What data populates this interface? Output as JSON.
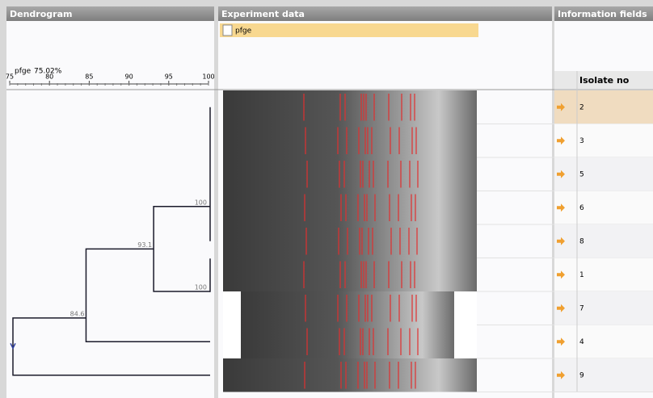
{
  "dendrogram": {
    "title": "Dendrogram",
    "experiment": "pfge",
    "cutoff": "75.02%",
    "scale": [
      75,
      80,
      85,
      90,
      95,
      100
    ],
    "nodes": [
      {
        "similarity": 100
      },
      {
        "similarity": 93.1
      },
      {
        "similarity": 84.6
      },
      {
        "similarity": 100
      }
    ]
  },
  "experiment_data": {
    "title": "Experiment data",
    "tab": "pfge"
  },
  "information_fields": {
    "title": "Information fields",
    "column": "Isolate no",
    "rows": [
      "2",
      "3",
      "5",
      "6",
      "8",
      "1",
      "7",
      "4",
      "9"
    ]
  }
}
